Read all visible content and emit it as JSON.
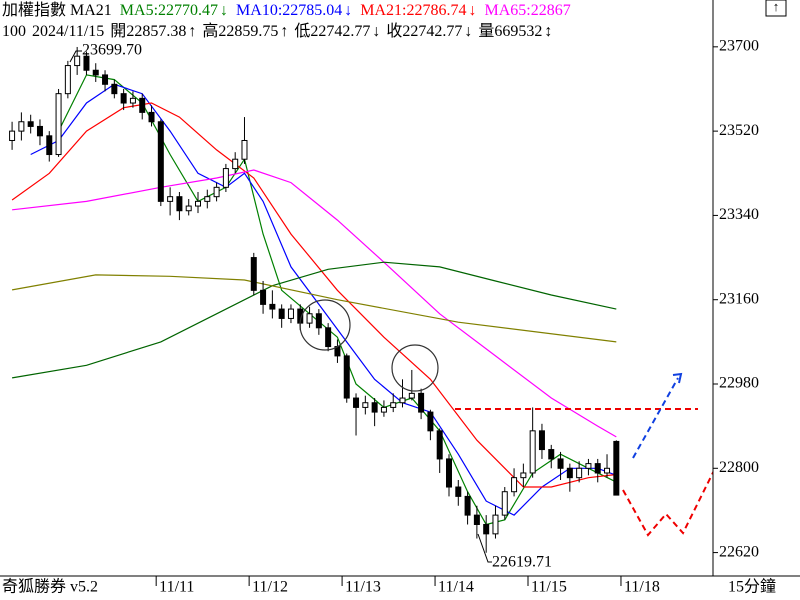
{
  "chart_data": {
    "type": "candlestick",
    "title": "加權指數 MA21",
    "info": {
      "count": 100,
      "date": "2024/11/15",
      "items": [
        {
          "label": "開",
          "value": 22857.38,
          "arrow": "↑"
        },
        {
          "label": "高",
          "value": 22859.75,
          "arrow": "↑"
        },
        {
          "label": "低",
          "value": 22742.77,
          "arrow": "↓"
        },
        {
          "label": "收",
          "value": 22742.77,
          "arrow": "↓"
        },
        {
          "label": "量",
          "value": 669532,
          "arrow": "↕"
        }
      ]
    },
    "app_name": "奇狐勝券 v5.2",
    "period": "15分鐘",
    "ylim": [
      22570,
      23800
    ],
    "yticks": [
      23700,
      23520,
      23340,
      23160,
      22980,
      22800,
      22620
    ],
    "xlim": [
      -1.3,
      75.4
    ],
    "xticks": [
      {
        "value": 15.5,
        "label": "11/11"
      },
      {
        "value": 25.5,
        "label": "11/12"
      },
      {
        "value": 35.5,
        "label": "11/13"
      },
      {
        "value": 45.5,
        "label": "11/14"
      },
      {
        "value": 55.5,
        "label": "11/15"
      },
      {
        "value": 65.5,
        "label": "11/18"
      }
    ],
    "extremes": [
      {
        "label": "23699.70"
      },
      {
        "label": "22619.71"
      }
    ],
    "candles": [
      [
        23500,
        23540,
        23480,
        23520
      ],
      [
        23520,
        23560,
        23500,
        23540
      ],
      [
        23540,
        23555,
        23515,
        23530
      ],
      [
        23530,
        23545,
        23490,
        23510
      ],
      [
        23510,
        23520,
        23455,
        23470
      ],
      [
        23470,
        23610,
        23465,
        23600
      ],
      [
        23600,
        23670,
        23590,
        23660
      ],
      [
        23660,
        23699.7,
        23640,
        23680
      ],
      [
        23680,
        23690,
        23640,
        23650
      ],
      [
        23650,
        23665,
        23625,
        23640
      ],
      [
        23640,
        23650,
        23605,
        23620
      ],
      [
        23620,
        23630,
        23590,
        23600
      ],
      [
        23600,
        23610,
        23565,
        23580
      ],
      [
        23580,
        23605,
        23570,
        23590
      ],
      [
        23590,
        23600,
        23545,
        23560
      ],
      [
        23560,
        23575,
        23530,
        23540
      ],
      [
        23540,
        23545,
        23360,
        23370
      ],
      [
        23370,
        23400,
        23340,
        23380
      ],
      [
        23380,
        23390,
        23330,
        23350
      ],
      [
        23350,
        23375,
        23340,
        23360
      ],
      [
        23360,
        23390,
        23345,
        23370
      ],
      [
        23370,
        23395,
        23355,
        23380
      ],
      [
        23380,
        23410,
        23370,
        23400
      ],
      [
        23400,
        23450,
        23390,
        23440
      ],
      [
        23440,
        23475,
        23430,
        23460
      ],
      [
        23460,
        23550,
        23450,
        23500
      ],
      [
        23250,
        23260,
        23170,
        23180
      ],
      [
        23180,
        23200,
        23130,
        23150
      ],
      [
        23150,
        23180,
        23120,
        23140
      ],
      [
        23140,
        23150,
        23100,
        23120
      ],
      [
        23120,
        23150,
        23110,
        23140
      ],
      [
        23140,
        23150,
        23095,
        23110
      ],
      [
        23110,
        23145,
        23100,
        23130
      ],
      [
        23130,
        23140,
        23085,
        23100
      ],
      [
        23100,
        23110,
        23050,
        23060
      ],
      [
        23060,
        23075,
        23025,
        23040
      ],
      [
        23040,
        23045,
        22940,
        22950
      ],
      [
        22950,
        22960,
        22870,
        22930
      ],
      [
        22930,
        22955,
        22915,
        22940
      ],
      [
        22940,
        22950,
        22890,
        22920
      ],
      [
        22920,
        22945,
        22910,
        22930
      ],
      [
        22930,
        22960,
        22920,
        22940
      ],
      [
        22940,
        22990,
        22930,
        22950
      ],
      [
        22950,
        23010,
        22945,
        22960
      ],
      [
        22960,
        22970,
        22905,
        22920
      ],
      [
        22920,
        22925,
        22860,
        22880
      ],
      [
        22880,
        22885,
        22790,
        22820
      ],
      [
        22820,
        22830,
        22740,
        22760
      ],
      [
        22760,
        22775,
        22720,
        22740
      ],
      [
        22740,
        22750,
        22680,
        22700
      ],
      [
        22700,
        22720,
        22650,
        22680
      ],
      [
        22680,
        22700,
        22619.71,
        22660
      ],
      [
        22660,
        22720,
        22650,
        22700
      ],
      [
        22700,
        22760,
        22690,
        22750
      ],
      [
        22750,
        22800,
        22740,
        22780
      ],
      [
        22780,
        22810,
        22760,
        22790
      ],
      [
        22790,
        22930,
        22780,
        22880
      ],
      [
        22880,
        22895,
        22820,
        22840
      ],
      [
        22840,
        22850,
        22800,
        22820
      ],
      [
        22820,
        22835,
        22775,
        22800
      ],
      [
        22800,
        22810,
        22750,
        22780
      ],
      [
        22780,
        22815,
        22770,
        22800
      ],
      [
        22800,
        22820,
        22785,
        22810
      ],
      [
        22810,
        22820,
        22770,
        22790
      ],
      [
        22790,
        22830,
        22780,
        22800
      ],
      [
        22857.38,
        22859.75,
        22742.77,
        22742.77
      ]
    ],
    "series": [
      {
        "name": "MA5",
        "color": "#008000",
        "last": 22770.47,
        "arrow": "↓",
        "x": [
          5,
          8,
          11,
          14,
          17,
          20,
          23,
          25,
          27,
          29,
          32,
          35,
          37,
          40,
          43,
          46,
          49,
          51,
          53,
          56,
          59,
          62,
          65
        ],
        "values": [
          23520,
          23640,
          23630,
          23580,
          23470,
          23370,
          23400,
          23460,
          23300,
          23180,
          23130,
          23080,
          22980,
          22930,
          22950,
          22880,
          22750,
          22680,
          22690,
          22790,
          22830,
          22800,
          22770.47
        ]
      },
      {
        "name": "MA10",
        "color": "#0000ff",
        "last": 22785.04,
        "arrow": "↓",
        "x": [
          2,
          5,
          8,
          11,
          14,
          17,
          20,
          23,
          25,
          27,
          30,
          33,
          36,
          39,
          42,
          45,
          48,
          51,
          54,
          57,
          60,
          63,
          65
        ],
        "values": [
          23470,
          23500,
          23580,
          23620,
          23600,
          23520,
          23430,
          23400,
          23430,
          23370,
          23230,
          23150,
          23070,
          22990,
          22940,
          22920,
          22830,
          22730,
          22700,
          22760,
          22800,
          22800,
          22785.04
        ]
      },
      {
        "name": "MA21",
        "color": "#ff0000",
        "last": 22786.74,
        "arrow": "↓",
        "x": [
          0,
          4,
          8,
          12,
          15,
          18,
          22,
          26,
          30,
          35,
          40,
          45,
          50,
          55,
          58,
          62,
          65
        ],
        "values": [
          23373,
          23430,
          23520,
          23570,
          23580,
          23550,
          23480,
          23420,
          23300,
          23180,
          23080,
          22990,
          22860,
          22760,
          22760,
          22780,
          22786.74
        ]
      },
      {
        "name": "MA65",
        "color": "#ff00ff",
        "last": 22867,
        "arrow": "",
        "x": [
          0,
          8,
          16,
          22,
          26,
          30,
          35,
          40,
          46,
          52,
          58,
          63,
          65
        ],
        "values": [
          23352,
          23370,
          23400,
          23420,
          23437,
          23410,
          23330,
          23240,
          23130,
          23040,
          22950,
          22890,
          22867
        ]
      },
      {
        "color": "#006400",
        "x": [
          0,
          8,
          16,
          22,
          28,
          34,
          40,
          46,
          52,
          58,
          65
        ],
        "values": [
          22993,
          23020,
          23070,
          23130,
          23190,
          23225,
          23240,
          23230,
          23200,
          23170,
          23140
        ]
      },
      {
        "color": "#808000",
        "x": [
          0,
          9,
          17,
          25,
          35,
          48,
          65
        ],
        "values": [
          23181,
          23213,
          23210,
          23202,
          23160,
          23112,
          23070
        ]
      }
    ]
  }
}
